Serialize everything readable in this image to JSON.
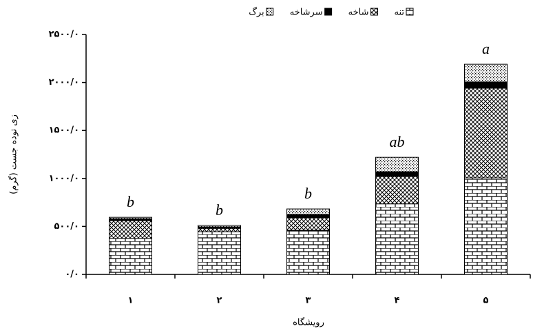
{
  "chart_data": {
    "type": "stacked-bar",
    "x_label": "رویشگاه",
    "y_label": "زی توده جست (گرم)",
    "categories": [
      "۱",
      "۲",
      "۳",
      "۴",
      "۵"
    ],
    "series": [
      {
        "name": "تنه",
        "color": "#000000",
        "pattern": "brick",
        "values": [
          375,
          445,
          460,
          735,
          1005
        ]
      },
      {
        "name": "شاخه",
        "color": "#000000",
        "pattern": "crosshatch",
        "values": [
          185,
          35,
          130,
          285,
          935
        ]
      },
      {
        "name": "سرشاخه",
        "color": "#000000",
        "pattern": "solid",
        "values": [
          20,
          15,
          35,
          50,
          65
        ]
      },
      {
        "name": "برگ",
        "color": "#000000",
        "pattern": "dots",
        "values": [
          15,
          15,
          57,
          150,
          185
        ]
      }
    ],
    "annotations": [
      "b",
      "b",
      "b",
      "ab",
      "a"
    ],
    "ylim": [
      0,
      2500
    ],
    "yticks": [
      {
        "value": 0,
        "label": "۰/۰"
      },
      {
        "value": 500,
        "label": "۵۰۰/۰"
      },
      {
        "value": 1000,
        "label": "۱۰۰۰/۰"
      },
      {
        "value": 1500,
        "label": "۱۵۰۰/۰"
      },
      {
        "value": 2000,
        "label": "۲۰۰۰/۰"
      },
      {
        "value": 2500,
        "label": "۲۵۰۰/۰"
      }
    ],
    "grid": false
  }
}
